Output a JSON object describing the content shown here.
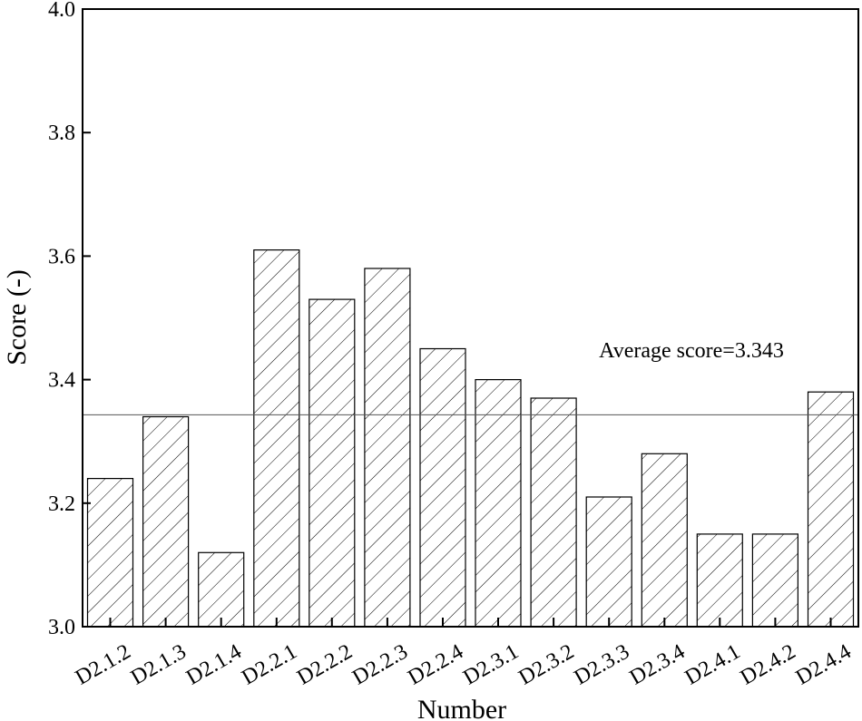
{
  "chart_data": {
    "type": "bar",
    "categories": [
      "D2.1.2",
      "D2.1.3",
      "D2.1.4",
      "D2.2.1",
      "D2.2.2",
      "D2.2.3",
      "D2.2.4",
      "D2.3.1",
      "D2.3.2",
      "D2.3.3",
      "D2.3.4",
      "D2.4.1",
      "D2.4.2",
      "D2.4.4"
    ],
    "values": [
      3.24,
      3.34,
      3.12,
      3.61,
      3.53,
      3.58,
      3.45,
      3.4,
      3.37,
      3.21,
      3.28,
      3.15,
      3.15,
      3.38
    ],
    "title": "",
    "xlabel": "Number",
    "ylabel": "Score (-)",
    "ylim": [
      3.0,
      4.0
    ],
    "yticks": [
      "3.0",
      "3.2",
      "3.4",
      "3.6",
      "3.8",
      "4.0"
    ],
    "grid": false,
    "bar_pattern": "diagonal-hatch",
    "average_line": {
      "value": 3.343,
      "label": "Average score=3.343"
    }
  }
}
